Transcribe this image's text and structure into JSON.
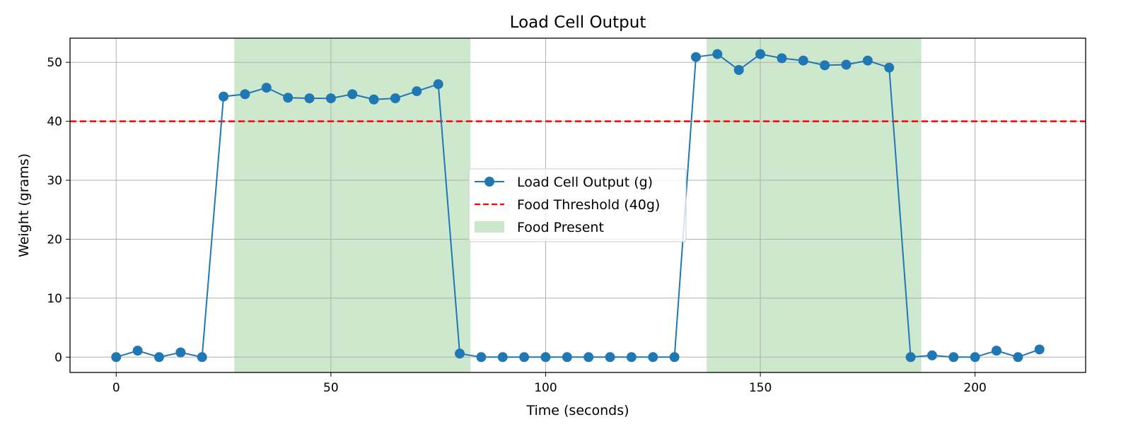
{
  "chart_data": {
    "type": "line",
    "title": "Load Cell Output",
    "xlabel": "Time (seconds)",
    "ylabel": "Weight (grams)",
    "xlim": [
      -10.75,
      225.75
    ],
    "ylim": [
      -2.6,
      54.1
    ],
    "xticks": [
      0,
      50,
      100,
      150,
      200
    ],
    "yticks": [
      0,
      10,
      20,
      30,
      40,
      50
    ],
    "grid": true,
    "legend_position": "center",
    "series": [
      {
        "name": "Load Cell Output (g)",
        "color": "#1f77b4",
        "marker": "circle",
        "x": [
          0,
          5,
          10,
          15,
          20,
          25,
          30,
          35,
          40,
          45,
          50,
          55,
          60,
          65,
          70,
          75,
          80,
          85,
          90,
          95,
          100,
          105,
          110,
          115,
          120,
          125,
          130,
          135,
          140,
          145,
          150,
          155,
          160,
          165,
          170,
          175,
          180,
          185,
          190,
          195,
          200,
          205,
          210,
          215
        ],
        "y": [
          0,
          1.1,
          0,
          0.8,
          0,
          44.2,
          44.6,
          45.7,
          44.0,
          43.9,
          43.9,
          44.6,
          43.7,
          43.9,
          45.1,
          46.3,
          0.6,
          0,
          0,
          0,
          0,
          0,
          0,
          0,
          0,
          0,
          0,
          50.9,
          51.4,
          48.7,
          51.4,
          50.7,
          50.3,
          49.5,
          49.6,
          50.3,
          49.1,
          0,
          0.3,
          0,
          0,
          1.1,
          0,
          1.3
        ]
      }
    ],
    "threshold": {
      "name": "Food Threshold (40g)",
      "value": 40,
      "color": "#ff0000",
      "style": "dashed"
    },
    "spans": {
      "name": "Food Present",
      "color": "#2ca02c",
      "ranges": [
        [
          27.5,
          82.5
        ],
        [
          137.5,
          187.5
        ]
      ]
    }
  }
}
